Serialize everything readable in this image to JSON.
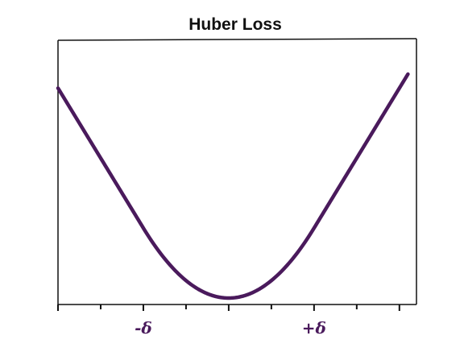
{
  "chart_data": {
    "type": "line",
    "title": "Huber Loss",
    "xlabel": "",
    "ylabel": "",
    "xlim": [
      -2,
      2.2
    ],
    "ylim": [
      0,
      1.6
    ],
    "grid": false,
    "x_ticks": [
      -2,
      -1,
      0,
      1,
      2
    ],
    "x_tick_labels": [
      {
        "x": -1,
        "label": "-δ"
      },
      {
        "x": 1,
        "label": "+δ"
      }
    ],
    "delta": 1,
    "series": [
      {
        "color": "#4a1a5c",
        "x": [
          -2,
          -1.75,
          -1.5,
          -1.25,
          -1,
          -0.75,
          -0.5,
          -0.25,
          0,
          0.25,
          0.5,
          0.75,
          1,
          1.25,
          1.5,
          1.75,
          2,
          2.1
        ],
        "values": [
          1.5,
          1.25,
          1.0,
          0.75,
          0.5,
          0.28,
          0.125,
          0.031,
          0,
          0.031,
          0.125,
          0.28,
          0.5,
          0.75,
          1.0,
          1.25,
          1.5,
          1.6
        ]
      }
    ],
    "colors": {
      "line": "#4a1a5c",
      "tick_label": "#4a1a5c",
      "frame": "#111111",
      "title": "#111111"
    }
  }
}
